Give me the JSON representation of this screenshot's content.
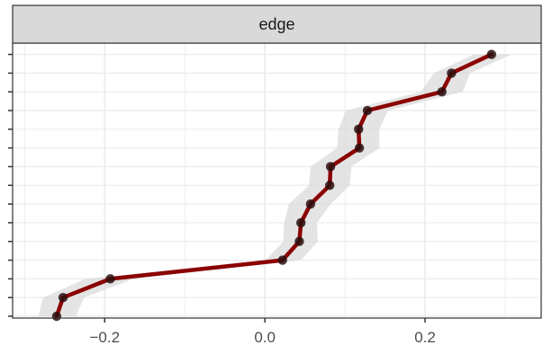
{
  "chart_data": {
    "type": "line",
    "facet_label": "edge",
    "x_ticks": [
      {
        "value": -0.2,
        "label": "−0.2"
      },
      {
        "value": 0.0,
        "label": "0.0"
      },
      {
        "value": 0.2,
        "label": "0.2"
      }
    ],
    "xlim": [
      -0.315,
      0.345
    ],
    "y_count": 15,
    "series": [
      {
        "values": [
          -0.26,
          -0.252,
          -0.193,
          0.022,
          0.043,
          0.045,
          0.057,
          0.081,
          0.082,
          0.118,
          0.117,
          0.128,
          0.221,
          0.233,
          0.283
        ],
        "lower": [
          -0.283,
          -0.277,
          -0.224,
          0.001,
          0.023,
          0.024,
          0.03,
          0.055,
          0.057,
          0.09,
          0.092,
          0.101,
          0.195,
          0.211,
          0.261
        ],
        "upper": [
          -0.236,
          -0.226,
          -0.164,
          0.045,
          0.066,
          0.065,
          0.082,
          0.106,
          0.108,
          0.143,
          0.143,
          0.154,
          0.247,
          0.256,
          0.308
        ]
      }
    ],
    "grid": true,
    "colors": {
      "line": "#8b0000",
      "point": "#2b0f0f",
      "ribbon": "#d9d9d9",
      "strip_fill": "#d9d9d9",
      "panel_border": "#333333",
      "grid": "#ebebeb"
    }
  }
}
